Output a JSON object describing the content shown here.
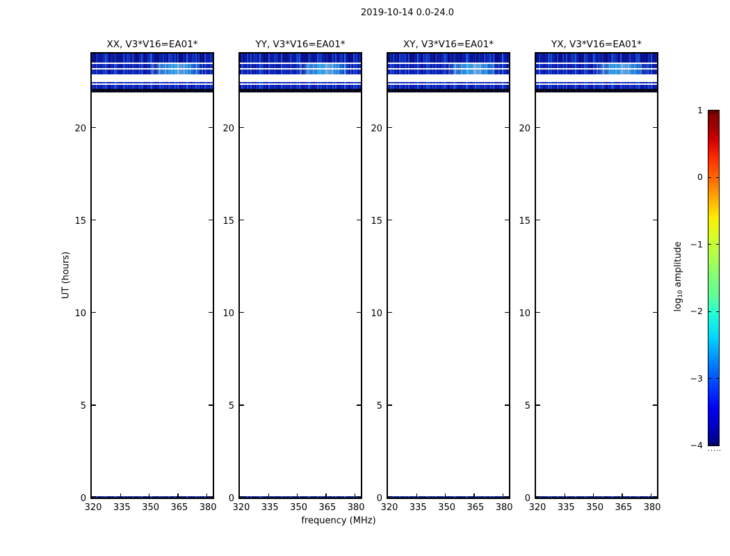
{
  "figure": {
    "title": "2019-10-14 0.0-24.0",
    "xlabel": "frequency (MHz)",
    "ylabel": "UT (hours)",
    "background_color": "#ffffff",
    "frame_color": "#000000"
  },
  "panels": [
    {
      "title": "XX, V3*V16=EA01*"
    },
    {
      "title": "YY, V3*V16=EA01*"
    },
    {
      "title": "XY, V3*V16=EA01*"
    },
    {
      "title": "YX, V3*V16=EA01*"
    }
  ],
  "colorbar": {
    "label_log": "log",
    "label_sub": "10",
    "label_rest": "amplitude",
    "tick_labels": [
      "1",
      "0",
      "−1",
      "−2",
      "−3",
      "−4"
    ]
  },
  "colors": {
    "band_blue": "#1228d2",
    "band_dark_row": "#04040e",
    "cyan_patch": "#7fe9ff",
    "bottom_line_blue": "#0a1a90"
  },
  "chart_data": {
    "type": "heatmap",
    "title": "2019-10-14 0.0-24.0",
    "subplot_titles": [
      "XX, V3*V16=EA01*",
      "YY, V3*V16=EA01*",
      "XY, V3*V16=EA01*",
      "YX, V3*V16=EA01*"
    ],
    "xlabel": "frequency (MHz)",
    "ylabel": "UT (hours)",
    "x_range_mhz": [
      320,
      383.2
    ],
    "x_ticks_mhz": [
      320,
      335,
      350,
      365,
      380
    ],
    "x_tick_labels": [
      "320",
      "335",
      "350",
      "365",
      "380"
    ],
    "y_range_hours": [
      0,
      24
    ],
    "y_ticks_hours": [
      0,
      5,
      10,
      15,
      20
    ],
    "y_tick_labels": [
      "0",
      "5",
      "10",
      "15",
      "20"
    ],
    "grid": false,
    "colorbar": {
      "label": "log10 amplitude",
      "min": -4,
      "max": 1,
      "ticks": [
        1,
        0,
        -1,
        -2,
        -3,
        -4
      ],
      "colormap": "jet"
    },
    "data_bands_ut": [
      {
        "ut_from": 23.51,
        "ut_to": 24.0,
        "style": "speckle-top",
        "amplitude_log10": "≈ -3.5 to -2.5, dark blue speckle with navy blotches"
      },
      {
        "ut_from": 23.21,
        "ut_to": 23.44,
        "style": "speckle-bright",
        "amplitude_log10": "≈ -3 to -2, blue speckle, cyan patches right of center"
      },
      {
        "ut_from": 22.87,
        "ut_to": 23.13,
        "style": "speckle-bright",
        "amplitude_log10": "≈ -3 to -1.5, blue speckle with bright cyan patches"
      },
      {
        "ut_from": 22.38,
        "ut_to": 22.46,
        "style": "speckle-thin",
        "amplitude_log10": "≈ -3, thin blue speckled row"
      },
      {
        "ut_from": 22.08,
        "ut_to": 22.31,
        "style": "speckle",
        "amplitude_log10": "≈ -3 to -2, blue speckle"
      },
      {
        "ut_from": 21.9,
        "ut_to": 22.08,
        "style": "dark",
        "amplitude_log10": "≈ -4, near-black row"
      },
      {
        "ut_from": 0.0,
        "ut_to": 0.09,
        "style": "bottom-line",
        "amplitude_log10": "≈ -3.5, thin dark-blue speckled row at UT 0"
      }
    ],
    "no_data_regions_ut": [
      [
        0.09,
        21.9
      ]
    ],
    "notes": "Four spectrogram subplots (correlations XX, YY, XY, YX of V3*V16=EA01*); data only near UT 21.9-24.0 and a thin row at UT 0; remainder is blank white. Jet colormap colorbar from -4 to 1."
  }
}
